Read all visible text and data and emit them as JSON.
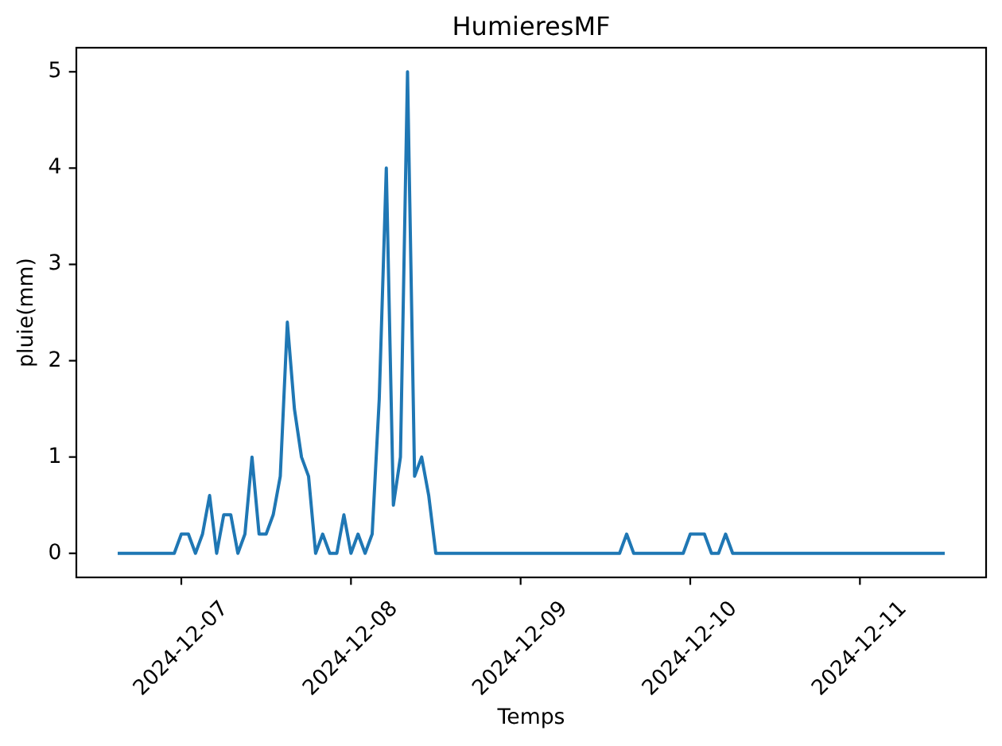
{
  "chart_data": {
    "type": "line",
    "title": "HumieresMF",
    "xlabel": "Temps",
    "ylabel": "pluie(mm)",
    "color": "#1f77b4",
    "x": [
      "2024-12-06T15:00",
      "2024-12-06T16:00",
      "2024-12-06T17:00",
      "2024-12-06T18:00",
      "2024-12-06T19:00",
      "2024-12-06T20:00",
      "2024-12-06T21:00",
      "2024-12-06T22:00",
      "2024-12-06T23:00",
      "2024-12-07T00:00",
      "2024-12-07T01:00",
      "2024-12-07T02:00",
      "2024-12-07T03:00",
      "2024-12-07T04:00",
      "2024-12-07T05:00",
      "2024-12-07T06:00",
      "2024-12-07T07:00",
      "2024-12-07T08:00",
      "2024-12-07T09:00",
      "2024-12-07T10:00",
      "2024-12-07T11:00",
      "2024-12-07T12:00",
      "2024-12-07T13:00",
      "2024-12-07T14:00",
      "2024-12-07T15:00",
      "2024-12-07T16:00",
      "2024-12-07T17:00",
      "2024-12-07T18:00",
      "2024-12-07T19:00",
      "2024-12-07T20:00",
      "2024-12-07T21:00",
      "2024-12-07T22:00",
      "2024-12-07T23:00",
      "2024-12-08T00:00",
      "2024-12-08T01:00",
      "2024-12-08T02:00",
      "2024-12-08T03:00",
      "2024-12-08T04:00",
      "2024-12-08T05:00",
      "2024-12-08T06:00",
      "2024-12-08T07:00",
      "2024-12-08T08:00",
      "2024-12-08T09:00",
      "2024-12-08T10:00",
      "2024-12-08T11:00",
      "2024-12-08T12:00",
      "2024-12-08T13:00",
      "2024-12-08T14:00",
      "2024-12-08T15:00",
      "2024-12-08T16:00",
      "2024-12-08T17:00",
      "2024-12-08T18:00",
      "2024-12-08T19:00",
      "2024-12-08T20:00",
      "2024-12-08T21:00",
      "2024-12-08T22:00",
      "2024-12-08T23:00",
      "2024-12-09T00:00",
      "2024-12-09T01:00",
      "2024-12-09T02:00",
      "2024-12-09T03:00",
      "2024-12-09T04:00",
      "2024-12-09T05:00",
      "2024-12-09T06:00",
      "2024-12-09T07:00",
      "2024-12-09T08:00",
      "2024-12-09T09:00",
      "2024-12-09T10:00",
      "2024-12-09T11:00",
      "2024-12-09T12:00",
      "2024-12-09T13:00",
      "2024-12-09T14:00",
      "2024-12-09T15:00",
      "2024-12-09T16:00",
      "2024-12-09T17:00",
      "2024-12-09T18:00",
      "2024-12-09T19:00",
      "2024-12-09T20:00",
      "2024-12-09T21:00",
      "2024-12-09T22:00",
      "2024-12-09T23:00",
      "2024-12-10T00:00",
      "2024-12-10T01:00",
      "2024-12-10T02:00",
      "2024-12-10T03:00",
      "2024-12-10T04:00",
      "2024-12-10T05:00",
      "2024-12-10T06:00",
      "2024-12-10T07:00",
      "2024-12-10T08:00",
      "2024-12-10T09:00",
      "2024-12-10T10:00",
      "2024-12-10T11:00",
      "2024-12-10T12:00",
      "2024-12-10T13:00",
      "2024-12-10T14:00",
      "2024-12-10T15:00",
      "2024-12-10T16:00",
      "2024-12-10T17:00",
      "2024-12-10T18:00",
      "2024-12-10T19:00",
      "2024-12-10T20:00",
      "2024-12-10T21:00",
      "2024-12-10T22:00",
      "2024-12-10T23:00",
      "2024-12-11T00:00",
      "2024-12-11T01:00",
      "2024-12-11T02:00",
      "2024-12-11T03:00",
      "2024-12-11T04:00",
      "2024-12-11T05:00",
      "2024-12-11T06:00",
      "2024-12-11T07:00",
      "2024-12-11T08:00",
      "2024-12-11T09:00",
      "2024-12-11T10:00",
      "2024-12-11T11:00",
      "2024-12-11T12:00"
    ],
    "values": [
      0,
      0,
      0,
      0,
      0,
      0,
      0,
      0,
      0,
      0.2,
      0.2,
      0,
      0.2,
      0.6,
      0,
      0.4,
      0.4,
      0,
      0.2,
      1.0,
      0.2,
      0.2,
      0.4,
      0.8,
      2.4,
      1.5,
      1.0,
      0.8,
      0,
      0.2,
      0,
      0,
      0.4,
      0,
      0.2,
      0,
      0.2,
      1.6,
      4.0,
      0.5,
      1.0,
      5.0,
      0.8,
      1.0,
      0.6,
      0,
      0,
      0,
      0,
      0,
      0,
      0,
      0,
      0,
      0,
      0,
      0,
      0,
      0,
      0,
      0,
      0,
      0,
      0,
      0,
      0,
      0,
      0,
      0,
      0,
      0,
      0,
      0.2,
      0,
      0,
      0,
      0,
      0,
      0,
      0,
      0,
      0.2,
      0.2,
      0.2,
      0,
      0,
      0.2,
      0,
      0,
      0,
      0,
      0,
      0,
      0,
      0,
      0,
      0,
      0,
      0,
      0,
      0,
      0,
      0,
      0,
      0,
      0,
      0,
      0,
      0,
      0,
      0,
      0,
      0,
      0,
      0,
      0,
      0,
      0
    ],
    "xlim": [
      "2024-12-06T09:09",
      "2024-12-11T17:51"
    ],
    "xticks": [
      "2024-12-07",
      "2024-12-08",
      "2024-12-09",
      "2024-12-10",
      "2024-12-11"
    ],
    "ylim": [
      -0.25,
      5.25
    ],
    "yticks": [
      0,
      1,
      2,
      3,
      4,
      5
    ]
  }
}
